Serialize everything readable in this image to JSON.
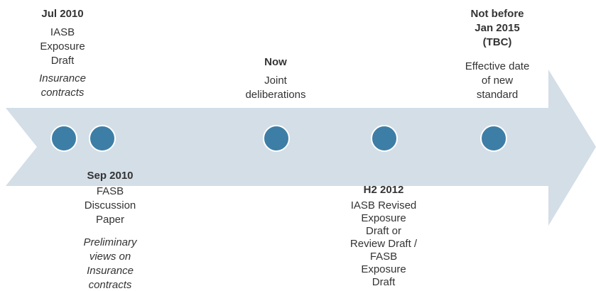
{
  "events": [
    {
      "date": [
        "Jul 2010"
      ],
      "lines": [
        "IASB",
        "Exposure",
        "Draft"
      ],
      "notes": [
        "Insurance",
        "contracts"
      ]
    },
    {
      "date": [
        "Sep 2010"
      ],
      "lines": [
        "FASB",
        "Discussion",
        "Paper"
      ],
      "notes": [
        "Preliminary",
        "views on",
        "Insurance",
        "contracts"
      ]
    },
    {
      "date": [
        "Now"
      ],
      "lines": [
        "Joint",
        "deliberations"
      ],
      "notes": []
    },
    {
      "date": [
        "H2 2012"
      ],
      "lines": [
        "IASB Revised",
        "Exposure",
        "Draft or",
        "Review Draft /",
        "FASB",
        "Exposure",
        "Draft"
      ],
      "notes": []
    },
    {
      "date": [
        "Not before",
        "Jan 2015",
        "(TBC)"
      ],
      "lines": [
        "Effective date",
        "of new",
        "standard"
      ],
      "notes": []
    }
  ]
}
